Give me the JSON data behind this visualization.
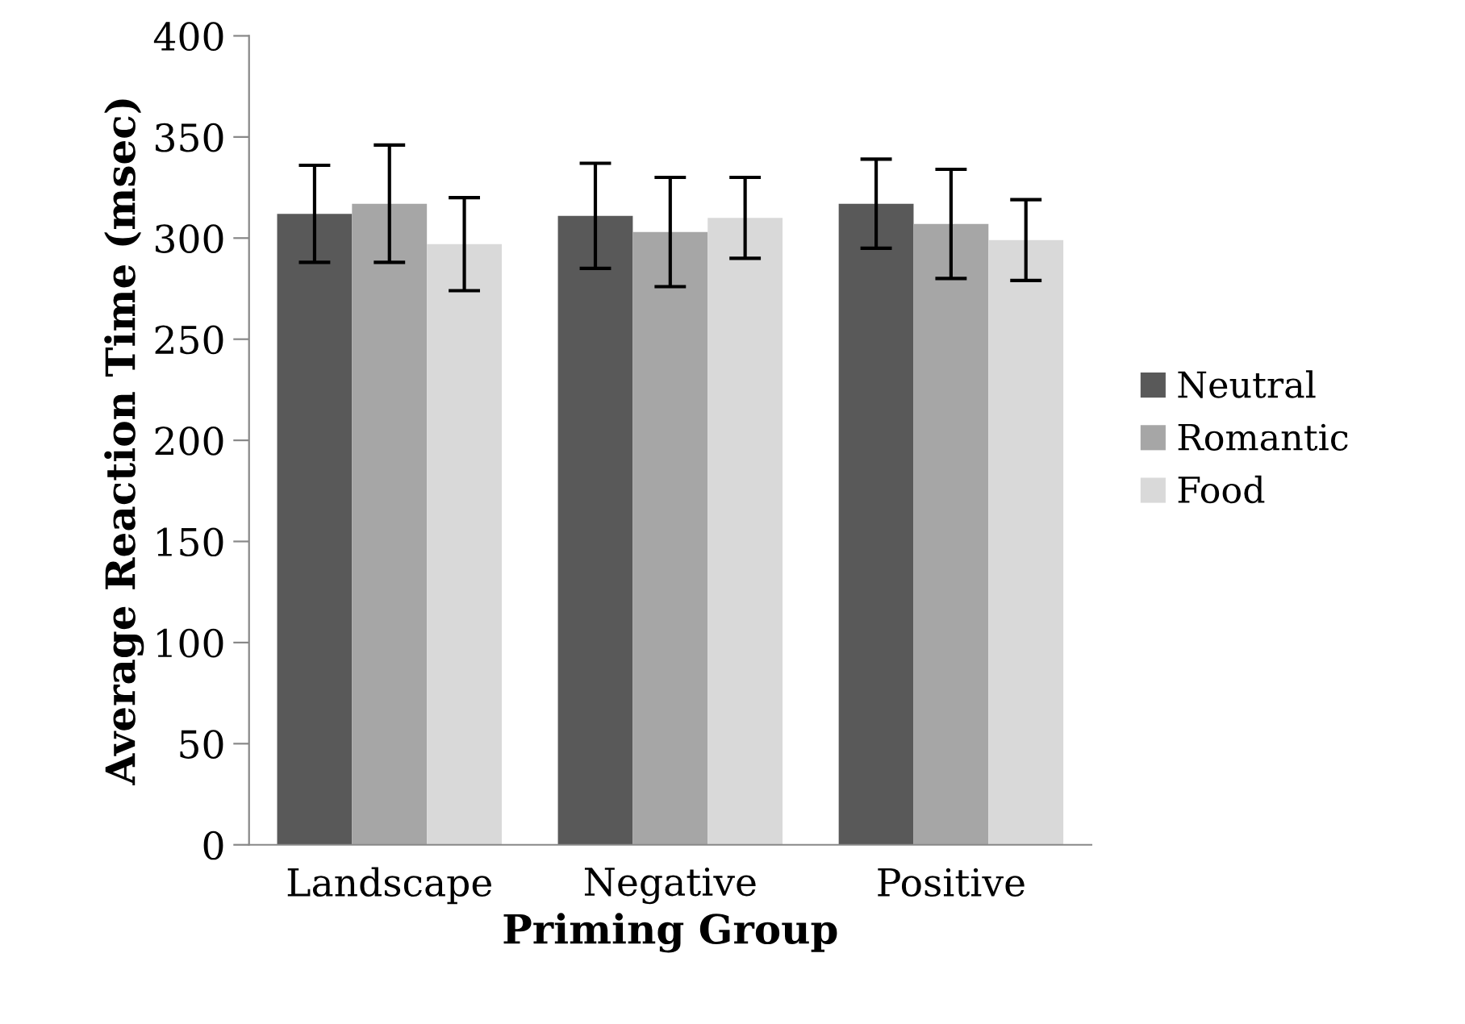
{
  "chart_data": {
    "type": "bar",
    "xlabel": "Priming Group",
    "ylabel": "Average Reaction Time (msec)",
    "categories": [
      "Landscape",
      "Negative",
      "Positive"
    ],
    "series": [
      {
        "name": "Neutral",
        "color": "#595959",
        "values": [
          312,
          311,
          317
        ],
        "errors": [
          24,
          26,
          22
        ]
      },
      {
        "name": "Romantic",
        "color": "#a6a6a6",
        "values": [
          317,
          303,
          307
        ],
        "errors": [
          29,
          27,
          27
        ]
      },
      {
        "name": "Food",
        "color": "#d9d9d9",
        "values": [
          297,
          310,
          299
        ],
        "errors": [
          23,
          20,
          20
        ]
      }
    ],
    "ylim": [
      0,
      400
    ],
    "yticks": [
      0,
      50,
      100,
      150,
      200,
      250,
      300,
      350,
      400
    ],
    "grid": false,
    "legend": "right"
  }
}
